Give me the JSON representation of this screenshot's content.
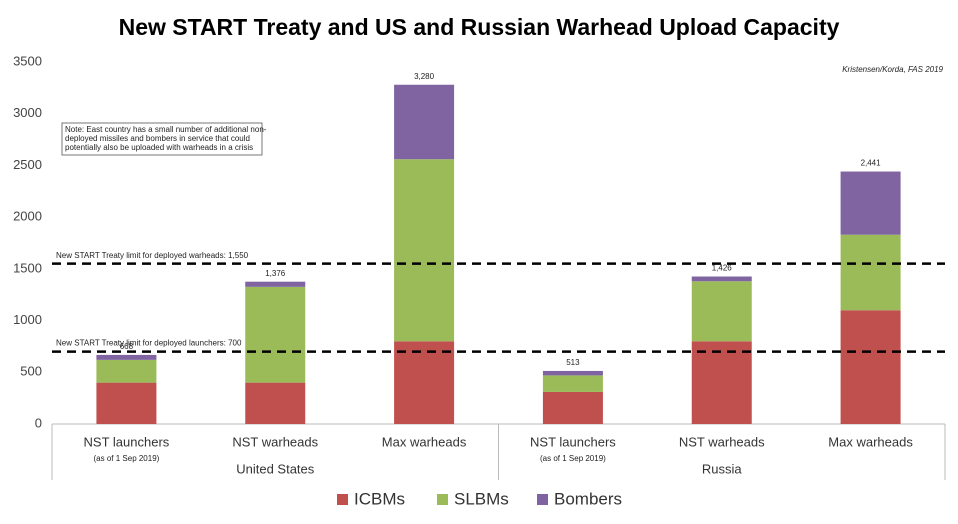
{
  "chart_data": {
    "type": "stacked_bar",
    "title": "New START Treaty and US and Russian Warhead Upload Capacity",
    "source": "Kristensen/Korda, FAS 2019",
    "note": [
      "Note: East country has a small number of additional non-",
      "deployed missiles and bombers in service that could",
      "potentially also be uploaded with warheads in a crisis"
    ],
    "groups": [
      {
        "name": "United States",
        "categories": [
          "NST launchers",
          "NST warheads",
          "Max warheads"
        ],
        "category_notes": [
          "(as of 1 Sep 2019)",
          null,
          null
        ]
      },
      {
        "name": "Russia",
        "categories": [
          "NST launchers",
          "NST warheads",
          "Max warheads"
        ],
        "category_notes": [
          "(as of 1 Sep 2019)",
          null,
          null
        ]
      }
    ],
    "series": [
      {
        "name": "ICBMs",
        "color": "#c0504d",
        "values": [
          400,
          400,
          800,
          310,
          800,
          1100
        ]
      },
      {
        "name": "SLBMs",
        "color": "#9bbb59",
        "values": [
          220,
          926,
          1760,
          160,
          580,
          730
        ]
      },
      {
        "name": "Bombers",
        "color": "#8064a2",
        "values": [
          48,
          50,
          720,
          43,
          46,
          611
        ]
      }
    ],
    "totals": {
      "values": [
        668,
        1376,
        3280,
        513,
        1426,
        2441
      ],
      "value_labels": [
        "668",
        "1,376",
        "3,280",
        "513",
        "1,426",
        "2,441"
      ]
    },
    "reference_lines": [
      {
        "value": 1550,
        "label": "New START Treaty limit for deployed warheads: 1,550"
      },
      {
        "value": 700,
        "label": "New START Treaty limit for deployed launchers: 700"
      }
    ],
    "ylim": [
      0,
      3500
    ],
    "yticks": [
      0,
      500,
      1000,
      1500,
      2000,
      2500,
      3000,
      3500
    ],
    "grid": false,
    "legend": "bottom"
  }
}
